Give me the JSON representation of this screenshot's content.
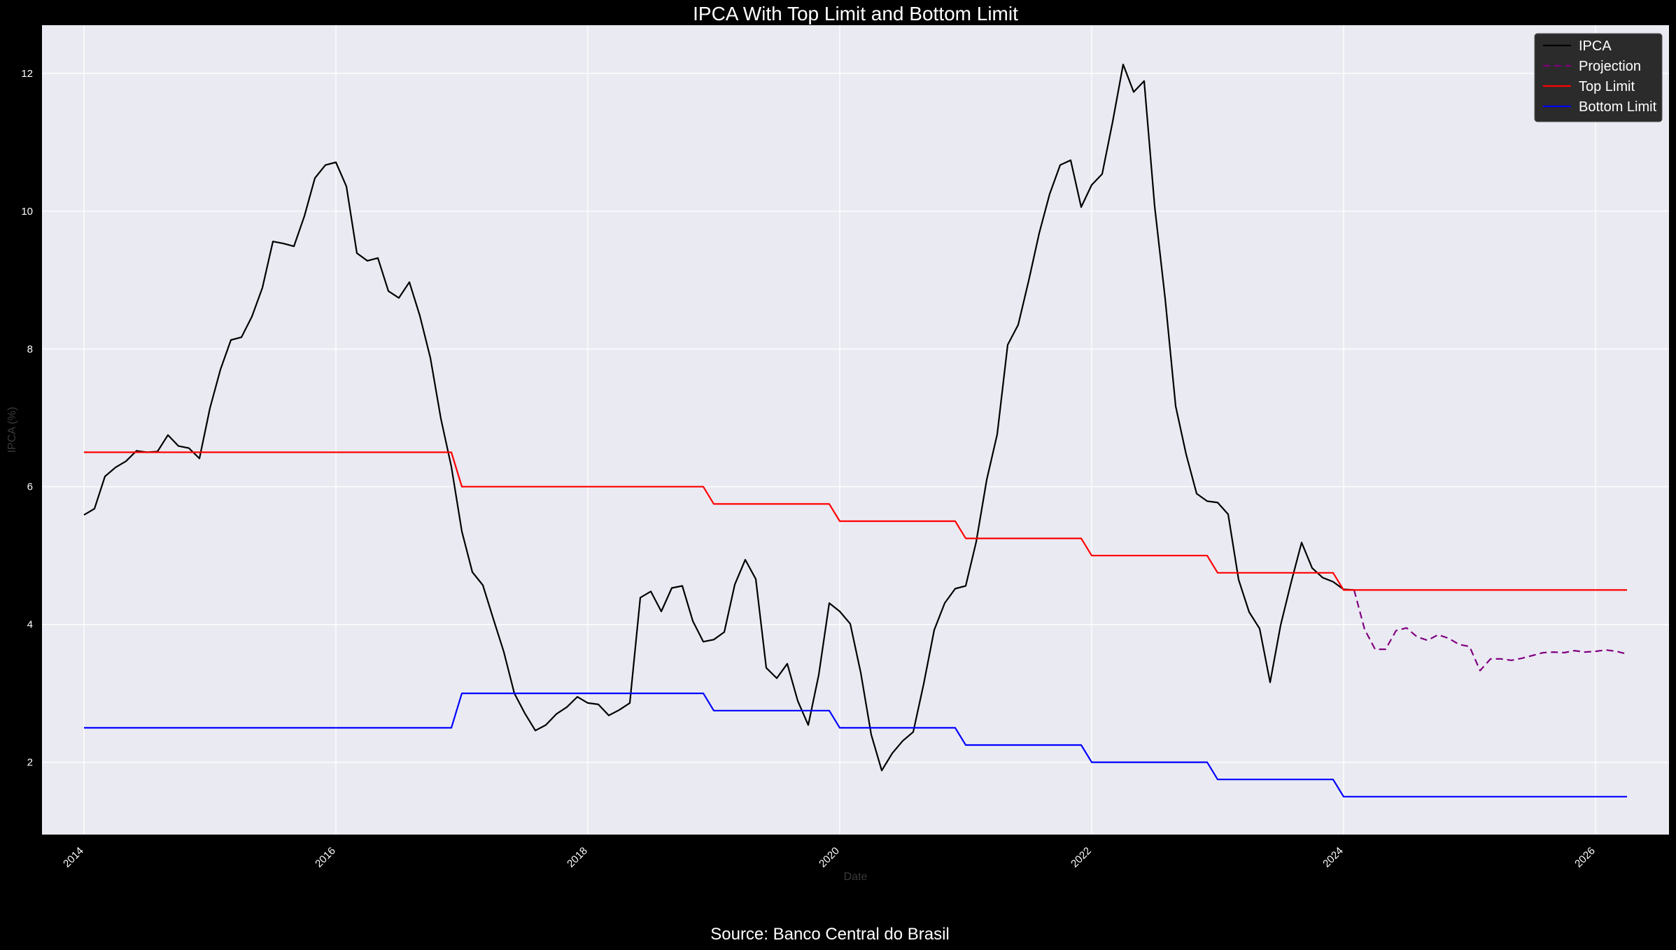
{
  "chart_data": {
    "type": "line",
    "title": "IPCA With Top Limit and Bottom Limit",
    "xlabel": "Date",
    "ylabel": "IPCA (%)",
    "xlim": [
      "2013-09-01",
      "2026-08-01"
    ],
    "ylim": [
      0.95,
      12.7
    ],
    "x_ticks": [
      "2014",
      "2016",
      "2018",
      "2020",
      "2022",
      "2024",
      "2026"
    ],
    "y_ticks": [
      2,
      4,
      6,
      8,
      10,
      12
    ],
    "grid": true,
    "legend_position": "top-right",
    "background_color": "#eaeaf2",
    "figure_color": "#000000",
    "series": [
      {
        "name": "IPCA",
        "color": "#000000",
        "style": "solid",
        "x": [
          "2014-01",
          "2014-02",
          "2014-03",
          "2014-04",
          "2014-05",
          "2014-06",
          "2014-07",
          "2014-08",
          "2014-09",
          "2014-10",
          "2014-11",
          "2014-12",
          "2015-01",
          "2015-02",
          "2015-03",
          "2015-04",
          "2015-05",
          "2015-06",
          "2015-07",
          "2015-08",
          "2015-09",
          "2015-10",
          "2015-11",
          "2015-12",
          "2016-01",
          "2016-02",
          "2016-03",
          "2016-04",
          "2016-05",
          "2016-06",
          "2016-07",
          "2016-08",
          "2016-09",
          "2016-10",
          "2016-11",
          "2016-12",
          "2017-01",
          "2017-02",
          "2017-03",
          "2017-04",
          "2017-05",
          "2017-06",
          "2017-07",
          "2017-08",
          "2017-09",
          "2017-10",
          "2017-11",
          "2017-12",
          "2018-01",
          "2018-02",
          "2018-03",
          "2018-04",
          "2018-05",
          "2018-06",
          "2018-07",
          "2018-08",
          "2018-09",
          "2018-10",
          "2018-11",
          "2018-12",
          "2019-01",
          "2019-02",
          "2019-03",
          "2019-04",
          "2019-05",
          "2019-06",
          "2019-07",
          "2019-08",
          "2019-09",
          "2019-10",
          "2019-11",
          "2019-12",
          "2020-01",
          "2020-02",
          "2020-03",
          "2020-04",
          "2020-05",
          "2020-06",
          "2020-07",
          "2020-08",
          "2020-09",
          "2020-10",
          "2020-11",
          "2020-12",
          "2021-01",
          "2021-02",
          "2021-03",
          "2021-04",
          "2021-05",
          "2021-06",
          "2021-07",
          "2021-08",
          "2021-09",
          "2021-10",
          "2021-11",
          "2021-12",
          "2022-01",
          "2022-02",
          "2022-03",
          "2022-04",
          "2022-05",
          "2022-06",
          "2022-07",
          "2022-08",
          "2022-09",
          "2022-10",
          "2022-11",
          "2022-12",
          "2023-01",
          "2023-02",
          "2023-03",
          "2023-04",
          "2023-05",
          "2023-06",
          "2023-07",
          "2023-08",
          "2023-09",
          "2023-10",
          "2023-11",
          "2023-12",
          "2024-01",
          "2024-02"
        ],
        "values": [
          5.59,
          5.68,
          6.15,
          6.28,
          6.37,
          6.52,
          6.5,
          6.51,
          6.75,
          6.59,
          6.56,
          6.41,
          7.14,
          7.7,
          8.13,
          8.17,
          8.47,
          8.89,
          9.56,
          9.53,
          9.49,
          9.93,
          10.48,
          10.67,
          10.71,
          10.36,
          9.39,
          9.28,
          9.32,
          8.84,
          8.74,
          8.97,
          8.48,
          7.87,
          6.99,
          6.29,
          5.35,
          4.76,
          4.57,
          4.08,
          3.6,
          3.0,
          2.71,
          2.46,
          2.54,
          2.7,
          2.8,
          2.95,
          2.86,
          2.84,
          2.68,
          2.76,
          2.86,
          4.39,
          4.48,
          4.19,
          4.53,
          4.56,
          4.05,
          3.75,
          3.78,
          3.89,
          4.58,
          4.94,
          4.66,
          3.37,
          3.22,
          3.43,
          2.89,
          2.54,
          3.27,
          4.31,
          4.19,
          4.01,
          3.3,
          2.4,
          1.88,
          2.13,
          2.31,
          2.44,
          3.14,
          3.92,
          4.31,
          4.52,
          4.56,
          5.2,
          6.1,
          6.76,
          8.06,
          8.35,
          8.99,
          9.68,
          10.25,
          10.67,
          10.74,
          10.06,
          10.38,
          10.54,
          11.3,
          12.13,
          11.73,
          11.89,
          10.07,
          8.73,
          7.17,
          6.47,
          5.9,
          5.79,
          5.77,
          5.6,
          4.65,
          4.18,
          3.94,
          3.16,
          3.99,
          4.61,
          5.19,
          4.82,
          4.68,
          4.62,
          4.51,
          4.5
        ]
      },
      {
        "name": "Projection",
        "color": "#800080",
        "style": "dashed",
        "x": [
          "2024-02",
          "2024-03",
          "2024-04",
          "2024-05",
          "2024-06",
          "2024-07",
          "2024-08",
          "2024-09",
          "2024-10",
          "2024-11",
          "2024-12",
          "2025-01",
          "2025-02",
          "2025-03",
          "2025-04",
          "2025-05",
          "2025-06",
          "2025-07",
          "2025-08",
          "2025-09",
          "2025-10",
          "2025-11",
          "2025-12",
          "2026-01",
          "2026-02",
          "2026-03",
          "2026-04"
        ],
        "values": [
          4.5,
          3.93,
          3.64,
          3.64,
          3.91,
          3.95,
          3.82,
          3.77,
          3.85,
          3.8,
          3.71,
          3.68,
          3.33,
          3.5,
          3.5,
          3.48,
          3.51,
          3.55,
          3.59,
          3.6,
          3.59,
          3.62,
          3.6,
          3.61,
          3.63,
          3.61,
          3.57
        ]
      },
      {
        "name": "Top Limit",
        "color": "#ff0000",
        "style": "step",
        "x": [
          "2014-01",
          "2016-12",
          "2017-01",
          "2018-12",
          "2019-01",
          "2019-12",
          "2020-01",
          "2020-12",
          "2021-01",
          "2021-12",
          "2022-01",
          "2022-12",
          "2023-01",
          "2023-12",
          "2024-01",
          "2026-04"
        ],
        "values": [
          6.5,
          6.5,
          6.0,
          6.0,
          5.75,
          5.75,
          5.5,
          5.5,
          5.25,
          5.25,
          5.0,
          5.0,
          4.75,
          4.75,
          4.5,
          4.5
        ]
      },
      {
        "name": "Bottom Limit",
        "color": "#0000ff",
        "style": "step",
        "x": [
          "2014-01",
          "2016-12",
          "2017-01",
          "2018-12",
          "2019-01",
          "2019-12",
          "2020-01",
          "2020-12",
          "2021-01",
          "2021-12",
          "2022-01",
          "2022-12",
          "2023-01",
          "2023-12",
          "2024-01",
          "2026-04"
        ],
        "values": [
          2.5,
          2.5,
          3.0,
          3.0,
          2.75,
          2.75,
          2.5,
          2.5,
          2.25,
          2.25,
          2.0,
          2.0,
          1.75,
          1.75,
          1.5,
          1.5
        ]
      }
    ]
  },
  "source": "Source: Banco Central do Brasil"
}
